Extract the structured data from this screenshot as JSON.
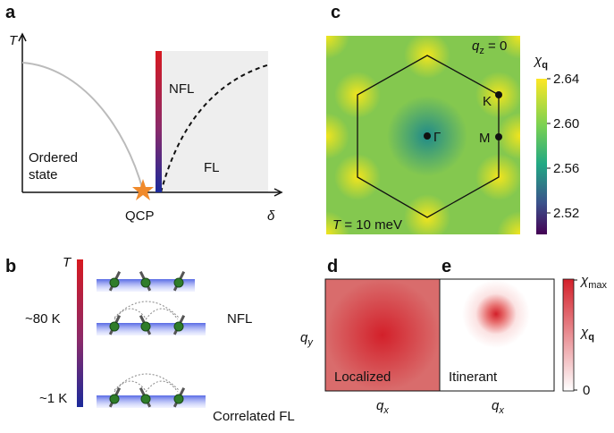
{
  "panel_a": {
    "label": "a",
    "y_axis": "T",
    "x_axis": "δ",
    "nfl": "NFL",
    "ordered": [
      "Ordered",
      "state"
    ],
    "fl": "FL",
    "point": "QCP"
  },
  "panel_b": {
    "label": "b",
    "axis": "T",
    "levels": [
      "~80 K",
      "~1 K"
    ],
    "states": [
      "NFL",
      "Correlated FL"
    ]
  },
  "panel_c": {
    "label": "c",
    "qz": {
      "symbol": "q",
      "sub": "z",
      "rest": " = 0"
    },
    "temperature": {
      "symbol": "T",
      "rest": " = 10 meV"
    },
    "points": [
      "Γ",
      "K",
      "M"
    ],
    "colorbar": {
      "title": {
        "symbol": "χ",
        "sub": "q"
      },
      "ticks": [
        "2.64",
        "2.60",
        "2.56",
        "2.52"
      ]
    }
  },
  "panel_d": {
    "label": "d",
    "name": "Localized",
    "y_axis": {
      "symbol": "q",
      "sub": "y"
    },
    "x_axis": {
      "symbol": "q",
      "sub": "x"
    }
  },
  "panel_e": {
    "label": "e",
    "name": "Itinerant",
    "x_axis": {
      "symbol": "q",
      "sub": "x"
    },
    "colorbar": {
      "top": {
        "symbol": "χ",
        "sub": "max"
      },
      "middle": {
        "symbol": "χ",
        "sub": "q"
      },
      "bottom": "0"
    }
  }
}
